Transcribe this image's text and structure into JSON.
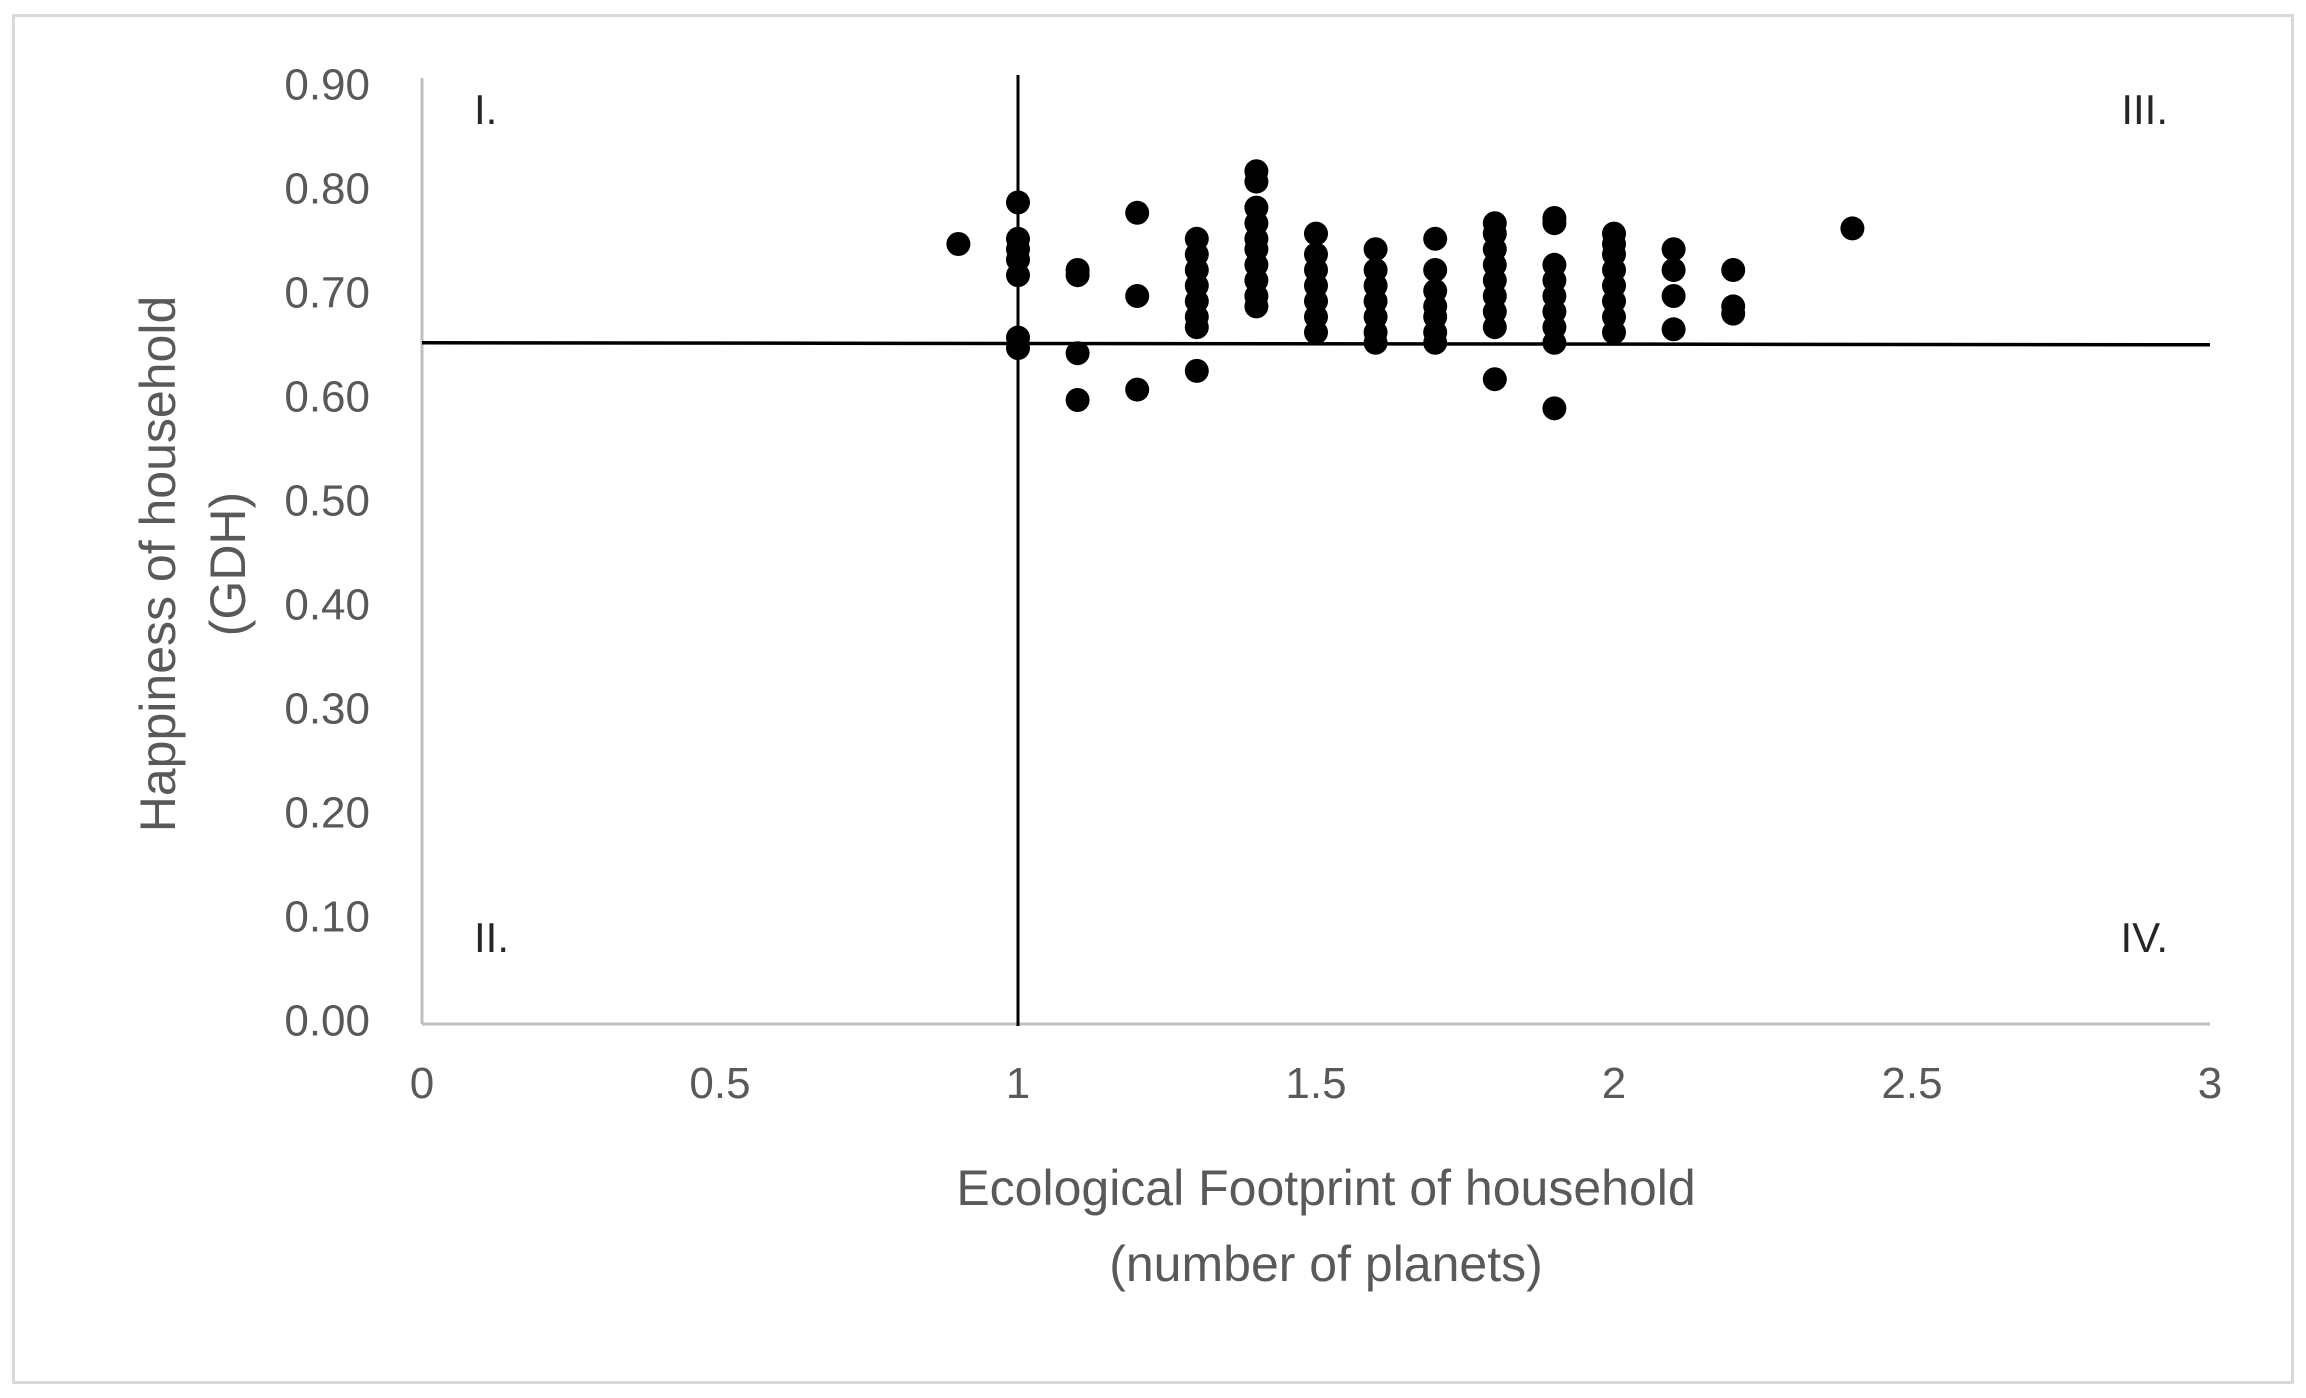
{
  "chart_data": {
    "type": "scatter",
    "title": "",
    "xlabel": [
      "Ecological Footprint of household",
      "(number of planets)"
    ],
    "ylabel": [
      "Happiness of household",
      "(GDH)"
    ],
    "xlim": [
      0,
      3
    ],
    "ylim": [
      0,
      0.9
    ],
    "x_ticks": [
      "0",
      "0.5",
      "1",
      "1.5",
      "2",
      "2.5",
      "3"
    ],
    "y_ticks": [
      "0.00",
      "0.10",
      "0.20",
      "0.30",
      "0.40",
      "0.50",
      "0.60",
      "0.70",
      "0.80",
      "0.90"
    ],
    "grid": false,
    "legend": "none",
    "marker_color": "#000000",
    "axis_color": "#bfbfbf",
    "reference_lines": {
      "x": 1,
      "y": 0.655,
      "color": "#000000"
    },
    "quadrant_labels": [
      {
        "text": "I.",
        "position": "top-left"
      },
      {
        "text": "II.",
        "position": "bottom-left"
      },
      {
        "text": "III.",
        "position": "top-right"
      },
      {
        "text": "IV.",
        "position": "bottom-right"
      }
    ],
    "points": [
      [
        0.9,
        0.75
      ],
      [
        1.0,
        0.79
      ],
      [
        1.0,
        0.755
      ],
      [
        1.0,
        0.745
      ],
      [
        1.0,
        0.735
      ],
      [
        1.0,
        0.72
      ],
      [
        1.0,
        0.66
      ],
      [
        1.0,
        0.65
      ],
      [
        1.1,
        0.725
      ],
      [
        1.1,
        0.72
      ],
      [
        1.1,
        0.645
      ],
      [
        1.1,
        0.6
      ],
      [
        1.2,
        0.78
      ],
      [
        1.2,
        0.7
      ],
      [
        1.2,
        0.61
      ],
      [
        1.3,
        0.755
      ],
      [
        1.3,
        0.74
      ],
      [
        1.3,
        0.725
      ],
      [
        1.3,
        0.71
      ],
      [
        1.3,
        0.695
      ],
      [
        1.3,
        0.68
      ],
      [
        1.3,
        0.67
      ],
      [
        1.3,
        0.628
      ],
      [
        1.4,
        0.82
      ],
      [
        1.4,
        0.81
      ],
      [
        1.4,
        0.785
      ],
      [
        1.4,
        0.77
      ],
      [
        1.4,
        0.755
      ],
      [
        1.4,
        0.745
      ],
      [
        1.4,
        0.73
      ],
      [
        1.4,
        0.715
      ],
      [
        1.4,
        0.7
      ],
      [
        1.4,
        0.69
      ],
      [
        1.5,
        0.76
      ],
      [
        1.5,
        0.74
      ],
      [
        1.5,
        0.725
      ],
      [
        1.5,
        0.71
      ],
      [
        1.5,
        0.695
      ],
      [
        1.5,
        0.68
      ],
      [
        1.5,
        0.665
      ],
      [
        1.6,
        0.745
      ],
      [
        1.6,
        0.725
      ],
      [
        1.6,
        0.71
      ],
      [
        1.6,
        0.695
      ],
      [
        1.6,
        0.68
      ],
      [
        1.6,
        0.665
      ],
      [
        1.6,
        0.655
      ],
      [
        1.7,
        0.755
      ],
      [
        1.7,
        0.725
      ],
      [
        1.7,
        0.705
      ],
      [
        1.7,
        0.69
      ],
      [
        1.7,
        0.68
      ],
      [
        1.7,
        0.665
      ],
      [
        1.7,
        0.655
      ],
      [
        1.8,
        0.77
      ],
      [
        1.8,
        0.76
      ],
      [
        1.8,
        0.745
      ],
      [
        1.8,
        0.73
      ],
      [
        1.8,
        0.715
      ],
      [
        1.8,
        0.7
      ],
      [
        1.8,
        0.685
      ],
      [
        1.8,
        0.67
      ],
      [
        1.8,
        0.62
      ],
      [
        1.9,
        0.775
      ],
      [
        1.9,
        0.77
      ],
      [
        1.9,
        0.73
      ],
      [
        1.9,
        0.715
      ],
      [
        1.9,
        0.7
      ],
      [
        1.9,
        0.685
      ],
      [
        1.9,
        0.67
      ],
      [
        1.9,
        0.655
      ],
      [
        1.9,
        0.592
      ],
      [
        2.0,
        0.76
      ],
      [
        2.0,
        0.75
      ],
      [
        2.0,
        0.74
      ],
      [
        2.0,
        0.725
      ],
      [
        2.0,
        0.71
      ],
      [
        2.0,
        0.695
      ],
      [
        2.0,
        0.68
      ],
      [
        2.0,
        0.665
      ],
      [
        2.1,
        0.745
      ],
      [
        2.1,
        0.725
      ],
      [
        2.1,
        0.7
      ],
      [
        2.1,
        0.668
      ],
      [
        2.2,
        0.725
      ],
      [
        2.2,
        0.69
      ],
      [
        2.2,
        0.683
      ],
      [
        2.4,
        0.765
      ]
    ]
  }
}
